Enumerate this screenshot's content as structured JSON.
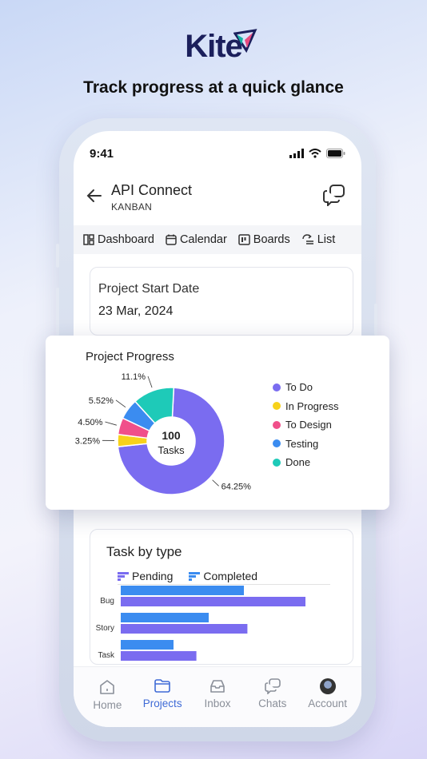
{
  "brand": {
    "name": "Kite",
    "tagline": "Track progress at a quick glance"
  },
  "status_bar": {
    "time": "9:41"
  },
  "header": {
    "title": "API Connect",
    "subtitle": "KANBAN"
  },
  "tabs": [
    {
      "label": "Dashboard",
      "icon": "dashboard-icon"
    },
    {
      "label": "Calendar",
      "icon": "calendar-icon"
    },
    {
      "label": "Boards",
      "icon": "boards-icon"
    },
    {
      "label": "List",
      "icon": "list-icon"
    }
  ],
  "project_start": {
    "label": "Project Start Date",
    "value": "23 Mar, 2024"
  },
  "project_progress": {
    "title": "Project Progress",
    "center_value": "100",
    "center_label": "Tasks"
  },
  "task_by_type": {
    "title": "Task by type",
    "legend_pending": "Pending",
    "legend_completed": "Completed"
  },
  "colors": {
    "todo": "#7a6cf0",
    "in_progress": "#f7d21b",
    "to_design": "#f04f8a",
    "testing": "#3b8cf0",
    "done": "#1ecab8",
    "accent": "#3f6bd6",
    "pending": "#7a6cf0",
    "completed": "#3b8cf0"
  },
  "chart_data": [
    {
      "type": "pie",
      "title": "Project Progress",
      "categories": [
        "To Do",
        "In Progress",
        "To Design",
        "Testing",
        "Done"
      ],
      "values": [
        64.25,
        3.25,
        4.5,
        5.52,
        11.1
      ],
      "value_labels": [
        "64.25%",
        "3.25%",
        "4.50%",
        "5.52%",
        "11.1%"
      ],
      "legend": "right"
    },
    {
      "type": "bar",
      "title": "Task by type",
      "categories": [
        "Bug",
        "Story",
        "Task"
      ],
      "series": [
        {
          "name": "Completed",
          "values": [
            7,
            5,
            3
          ]
        },
        {
          "name": "Pending",
          "values": [
            10.5,
            7.2,
            4.3
          ]
        }
      ]
    }
  ],
  "nav": [
    {
      "label": "Home",
      "icon": "home-icon",
      "active": false
    },
    {
      "label": "Projects",
      "icon": "folder-icon",
      "active": true
    },
    {
      "label": "Inbox",
      "icon": "inbox-icon",
      "active": false
    },
    {
      "label": "Chats",
      "icon": "chats-icon",
      "active": false
    },
    {
      "label": "Account",
      "icon": "avatar",
      "active": false
    }
  ]
}
